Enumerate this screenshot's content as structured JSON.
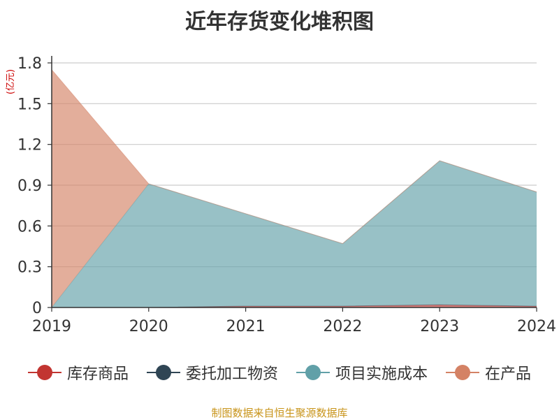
{
  "chart_data": {
    "type": "area",
    "title": "近年存货变化堆积图",
    "ylabel": "(亿元)",
    "x": [
      "2019",
      "2020",
      "2021",
      "2022",
      "2023",
      "2024"
    ],
    "ylim": [
      0,
      1.8
    ],
    "yticks": [
      "0",
      "0.3",
      "0.6",
      "0.9",
      "1.2",
      "1.5",
      "1.8"
    ],
    "yticks_values": [
      0,
      0.3,
      0.6,
      0.9,
      1.2,
      1.5,
      1.8
    ],
    "stacked": true,
    "grid": true,
    "legend_position": "bottom",
    "series": [
      {
        "name": "库存商品",
        "color": "#c23531",
        "values": [
          0,
          0,
          0.01,
          0.01,
          0.02,
          0.01
        ]
      },
      {
        "name": "委托加工物资",
        "color": "#2f4554",
        "values": [
          0,
          0,
          0,
          0,
          0,
          0
        ]
      },
      {
        "name": "项目实施成本",
        "color": "#61a0a8",
        "values": [
          0,
          0.91,
          0.68,
          0.46,
          1.06,
          0.84
        ]
      },
      {
        "name": "在产品",
        "color": "#d48265",
        "values": [
          1.75,
          0,
          0,
          0,
          0,
          0
        ]
      }
    ]
  },
  "footer": {
    "source": "制图数据来自恒生聚源数据库"
  }
}
